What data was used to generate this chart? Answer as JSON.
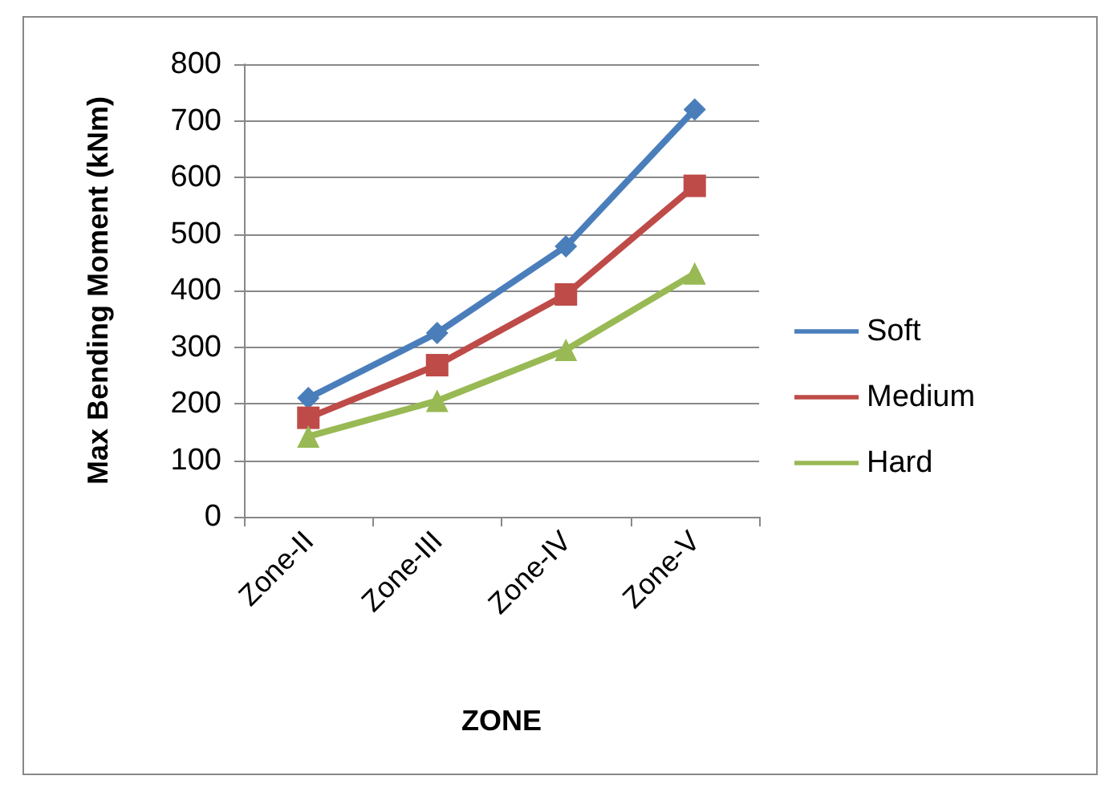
{
  "chart_data": {
    "type": "line",
    "xlabel": "ZONE",
    "ylabel": "Max Bending Moment (kNm)",
    "categories": [
      "Zone-II",
      "Zone-III",
      "Zone-IV",
      "Zone-V"
    ],
    "series": [
      {
        "name": "Soft",
        "color": "#4a7ebb",
        "marker": "diamond",
        "values": [
          210,
          325,
          478,
          720
        ]
      },
      {
        "name": "Medium",
        "color": "#be4b48",
        "marker": "square",
        "values": [
          175,
          268,
          393,
          585
        ]
      },
      {
        "name": "Hard",
        "color": "#98b954",
        "marker": "triangle",
        "values": [
          142,
          205,
          295,
          430
        ]
      }
    ],
    "ylim": [
      0,
      800
    ],
    "yticks": [
      0,
      100,
      200,
      300,
      400,
      500,
      600,
      700,
      800
    ],
    "grid": "y",
    "legend": "right",
    "line_style": "solid"
  }
}
